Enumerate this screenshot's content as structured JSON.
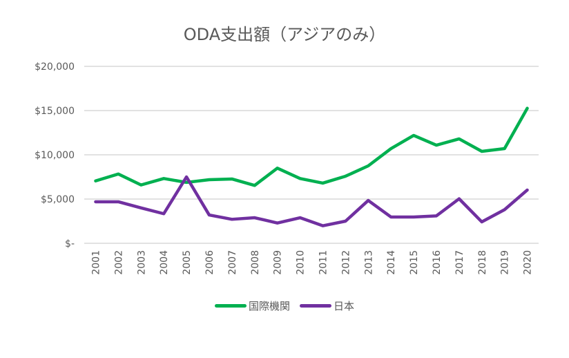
{
  "chart_data": {
    "type": "line",
    "title": "ODA支出額（アジアのみ）",
    "xlabel": "",
    "ylabel": "",
    "categories": [
      "2001",
      "2002",
      "2003",
      "2004",
      "2005",
      "2006",
      "2007",
      "2008",
      "2009",
      "2010",
      "2011",
      "2012",
      "2013",
      "2014",
      "2015",
      "2016",
      "2017",
      "2018",
      "2019",
      "2020"
    ],
    "ylim": [
      0,
      20000
    ],
    "yticks": [
      0,
      5000,
      10000,
      15000,
      20000
    ],
    "ytick_labels": [
      "$-",
      "$5,000",
      "$10,000",
      "$15,000",
      "$20,000"
    ],
    "grid": true,
    "legend_position": "bottom",
    "series": [
      {
        "name": "国際機関",
        "color": "#00B050",
        "values": [
          7050,
          7830,
          6590,
          7320,
          6880,
          7190,
          7270,
          6540,
          8490,
          7320,
          6800,
          7580,
          8750,
          10700,
          12190,
          11090,
          11800,
          10390,
          10700,
          15260
        ]
      },
      {
        "name": "日本",
        "color": "#7030A0",
        "values": [
          4690,
          4690,
          4000,
          3340,
          7500,
          3200,
          2710,
          2890,
          2290,
          2890,
          1980,
          2500,
          4840,
          2970,
          2970,
          3100,
          5030,
          2420,
          3800,
          6020
        ]
      }
    ]
  }
}
